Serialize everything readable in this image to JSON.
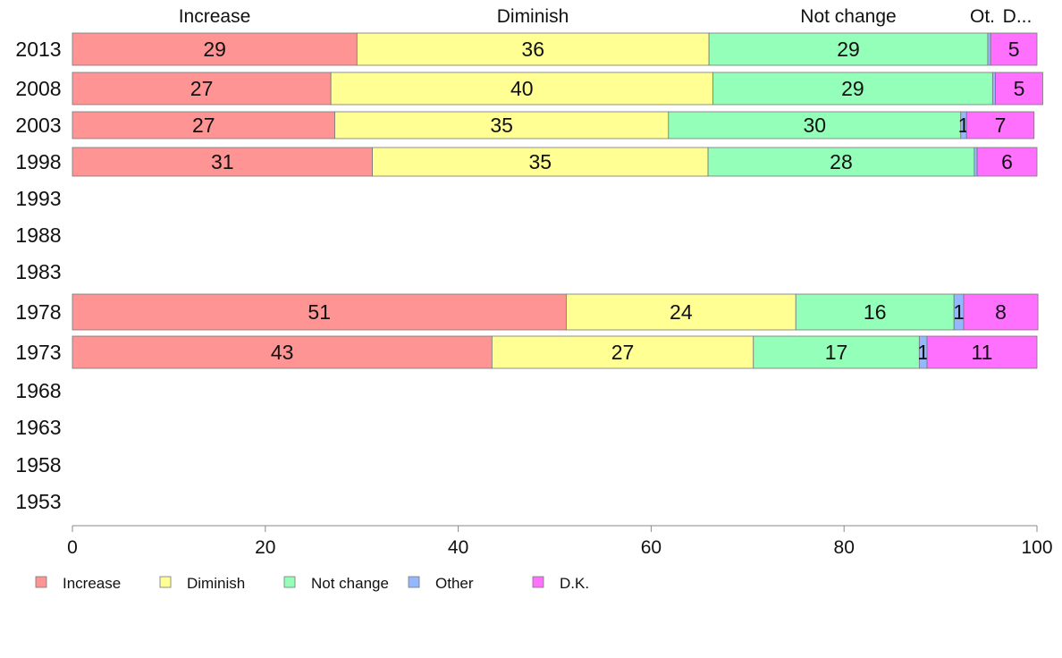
{
  "chart_data": {
    "type": "bar",
    "orientation": "horizontal",
    "stacked": true,
    "categories": [
      "2013",
      "2008",
      "2003",
      "1998",
      "1993",
      "1988",
      "1983",
      "1978",
      "1973",
      "1968",
      "1963",
      "1958",
      "1953"
    ],
    "series": [
      {
        "name": "Increase",
        "color": "#ff9494",
        "values": [
          29.5,
          26.8,
          27.2,
          31.1,
          null,
          null,
          null,
          51.2,
          43.5,
          null,
          null,
          null,
          null
        ],
        "labels": [
          "29",
          "27",
          "27",
          "31",
          "",
          "",
          "",
          "51",
          "43",
          "",
          "",
          "",
          ""
        ]
      },
      {
        "name": "Diminish",
        "color": "#ffff94",
        "values": [
          36.5,
          39.6,
          34.6,
          34.8,
          null,
          null,
          null,
          23.8,
          27.1,
          null,
          null,
          null,
          null
        ],
        "labels": [
          "36",
          "40",
          "35",
          "35",
          "",
          "",
          "",
          "24",
          "27",
          "",
          "",
          "",
          ""
        ]
      },
      {
        "name": "Not change",
        "color": "#94ffb8",
        "values": [
          28.9,
          29.0,
          30.3,
          27.6,
          null,
          null,
          null,
          16.4,
          17.2,
          null,
          null,
          null,
          null
        ],
        "labels": [
          "29",
          "29",
          "30",
          "28",
          "",
          "",
          "",
          "16",
          "17",
          "",
          "",
          "",
          ""
        ]
      },
      {
        "name": "Other",
        "color": "#94b8ff",
        "values": [
          0.3,
          0.3,
          0.6,
          0.3,
          null,
          null,
          null,
          1.0,
          0.8,
          null,
          null,
          null,
          null
        ],
        "labels": [
          "",
          "",
          "1",
          "",
          "",
          "",
          "",
          "1",
          "1",
          "",
          "",
          "",
          ""
        ]
      },
      {
        "name": "D.K.",
        "color": "#ff70ff",
        "values": [
          4.8,
          4.9,
          7.0,
          6.2,
          null,
          null,
          null,
          7.7,
          11.4,
          null,
          null,
          null,
          null
        ],
        "labels": [
          "5",
          "5",
          "7",
          "6",
          "",
          "",
          "",
          "8",
          "11",
          "",
          "",
          "",
          ""
        ]
      }
    ],
    "header_labels": [
      "Increase",
      "Diminish",
      "Not change",
      "Ot.",
      "D..."
    ],
    "xlim": [
      0,
      100
    ],
    "xticks": [
      "0",
      "20",
      "40",
      "60",
      "80",
      "100"
    ],
    "legend": [
      "Increase",
      "Diminish",
      "Not change",
      "Other",
      "D.K."
    ],
    "legend_position": "bottom",
    "grid": false
  }
}
